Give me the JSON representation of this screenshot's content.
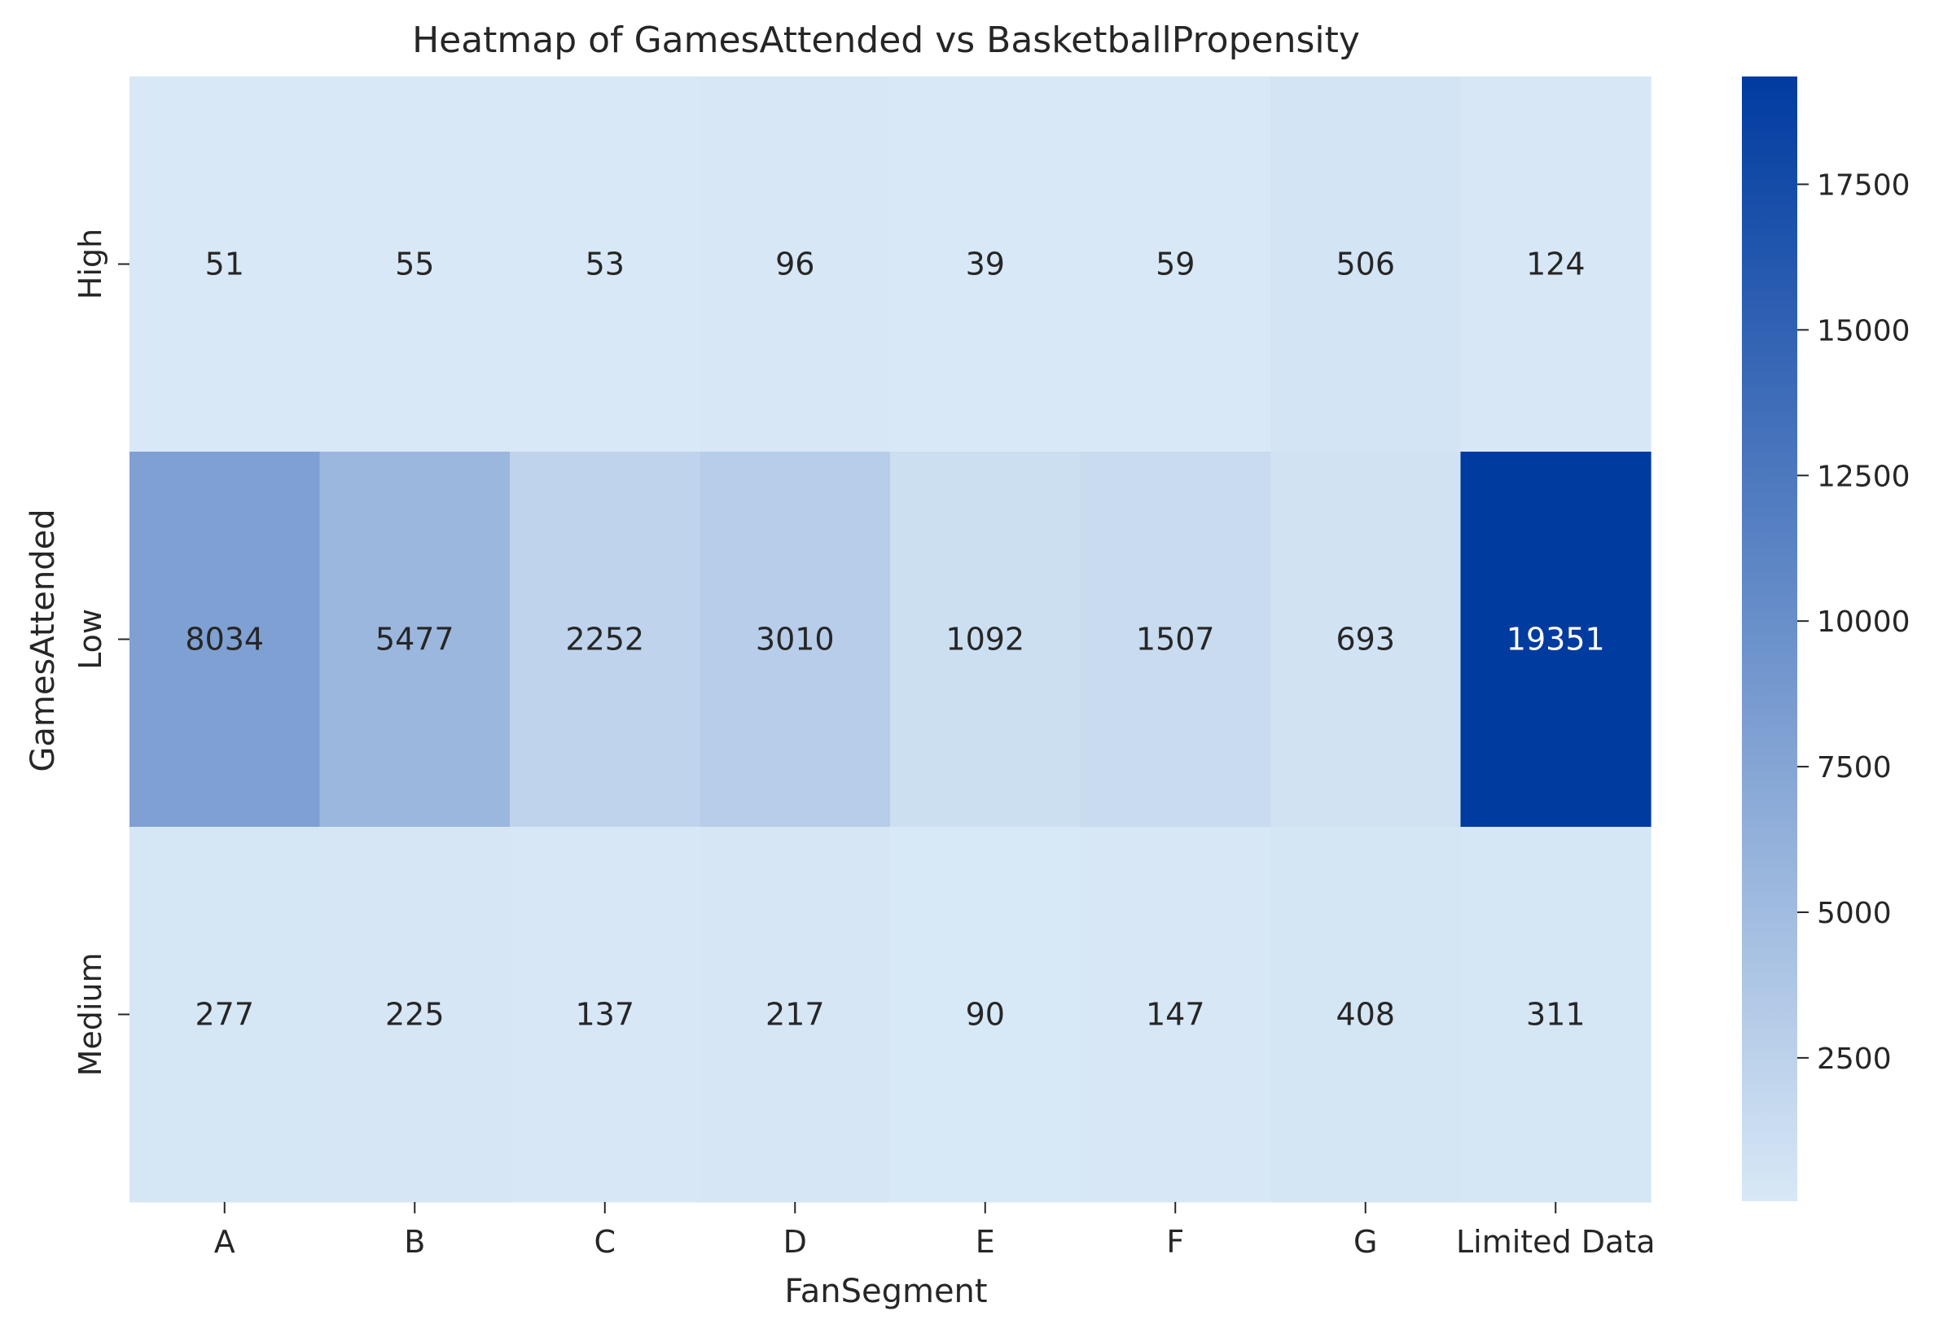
{
  "chart_data": {
    "type": "heatmap",
    "title": "Heatmap of GamesAttended vs BasketballPropensity",
    "xlabel": "FanSegment",
    "ylabel": "GamesAttended",
    "x_categories": [
      "A",
      "B",
      "C",
      "D",
      "E",
      "F",
      "G",
      "Limited Data"
    ],
    "y_categories": [
      "High",
      "Low",
      "Medium"
    ],
    "values": [
      [
        51,
        55,
        53,
        96,
        39,
        59,
        506,
        124
      ],
      [
        8034,
        5477,
        2252,
        3010,
        1092,
        1507,
        693,
        19351
      ],
      [
        277,
        225,
        137,
        217,
        90,
        147,
        408,
        311
      ]
    ],
    "colorbar": {
      "min": 39,
      "max": 19351,
      "ticks": [
        2500,
        5000,
        7500,
        10000,
        12500,
        15000,
        17500
      ],
      "colors": [
        "#d8e8f6",
        "#003ba0"
      ]
    }
  }
}
